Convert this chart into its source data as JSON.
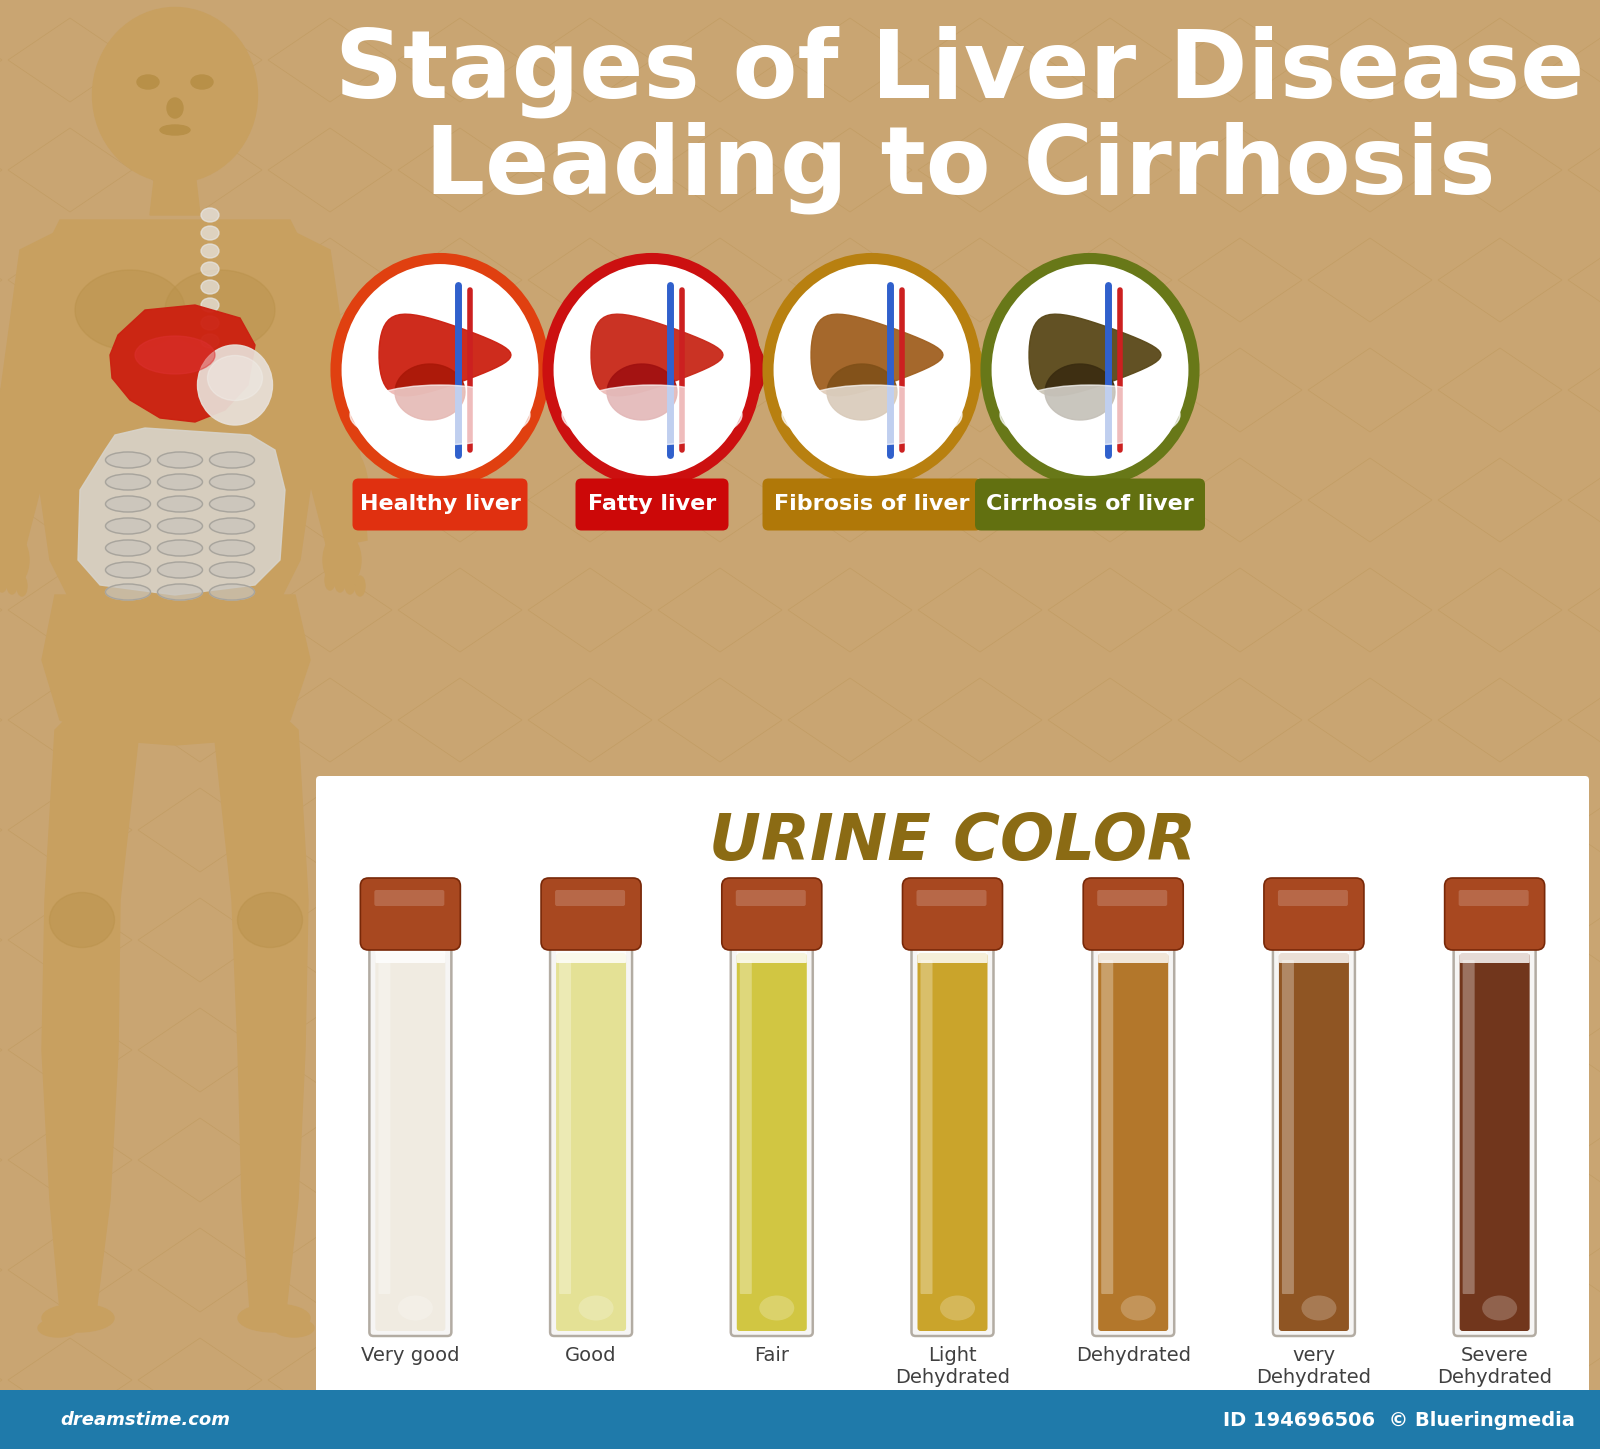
{
  "title_line1": "Stages of Liver Disease",
  "title_line2": "Leading to Cirrhosis",
  "background_color": "#c9a572",
  "white_panel_color": "#ffffff",
  "title_color": "#ffffff",
  "urine_title": "URINE COLOR",
  "urine_title_color": "#8B6B14",
  "liver_stages": [
    {
      "label": "Healthy liver",
      "badge_color": "#e03010",
      "border_color": "#e04010",
      "liver_color": "#cc2010",
      "liver_color2": "#aa1808"
    },
    {
      "label": "Fatty liver",
      "badge_color": "#cc0808",
      "border_color": "#cc1010",
      "liver_color": "#c82818",
      "liver_color2": "#a01010"
    },
    {
      "label": "Fibrosis of liver",
      "badge_color": "#b07808",
      "border_color": "#b88010",
      "liver_color": "#a06020",
      "liver_color2": "#805018"
    },
    {
      "label": "Cirrhosis of liver",
      "badge_color": "#627010",
      "border_color": "#687818",
      "liver_color": "#5a4818",
      "liver_color2": "#3a2c10"
    }
  ],
  "arrow_colors": [
    "#d85010",
    "#c01010",
    "#b89010"
  ],
  "urine_labels": [
    "Very good",
    "Good",
    "Fair",
    "Light\nDehydrated",
    "Dehydrated",
    "very\nDehydrated",
    "Severe\nDehydrated"
  ],
  "urine_colors": [
    "#f0ebe0",
    "#e4e090",
    "#cfc438",
    "#c8a020",
    "#b07020",
    "#8a4c18",
    "#6a2c10"
  ],
  "tube_cap_color": "#a84820",
  "body_color": "#c8a060",
  "body_skin_dark": "#b89048",
  "organ_liver_color": "#cc2010",
  "organ_stomach_color": "#e8e0d8",
  "organ_intestine_color": "#d8d4cc"
}
